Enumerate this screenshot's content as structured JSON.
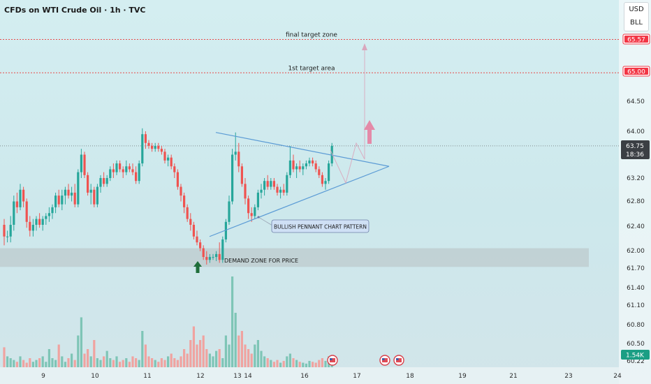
{
  "title": "CFDs on WTI Crude Oil · 1h · TVC",
  "units": [
    "USD",
    "BLL"
  ],
  "colors": {
    "up": "#26a69a",
    "down": "#ef5350",
    "up_vol": "#7ec5b6",
    "down_vol": "#f0a3a0",
    "trendline": "#5b9bd5",
    "target_line": "#e84a4a",
    "zone": "#b9c4c6",
    "target_badge": "#f23645",
    "arrow_up": "#e48aa8",
    "demand_arrow": "#1f6e3a",
    "volume_badge": "#1a9e84"
  },
  "chart_data": {
    "type": "candlestick",
    "y_axis": {
      "ticks": [
        "64.50",
        "64.00",
        "63.20",
        "62.80",
        "62.40",
        "62.00",
        "61.70",
        "61.40",
        "61.10",
        "60.80",
        "60.50",
        "60.22"
      ],
      "badges": [
        {
          "value": "65.57",
          "kind": "target"
        },
        {
          "value": "65.00",
          "kind": "target"
        },
        {
          "value": "63.75",
          "sub": "18:36",
          "kind": "current"
        },
        {
          "value": "1.54K",
          "kind": "volume"
        }
      ]
    },
    "x_axis": {
      "ticks": [
        "9",
        "10",
        "11",
        "12",
        "13",
        "14",
        "16",
        "17",
        "18",
        "19",
        "21",
        "23",
        "24"
      ]
    },
    "levels": [
      {
        "label": "final target zone",
        "value": 65.57
      },
      {
        "label": "1st target area",
        "value": 65.0
      }
    ],
    "current_price": 63.75,
    "annotations": [
      "BULLISH PENNANT CHART PATTERN",
      "DEMAND ZONE FOR PRICE"
    ],
    "demand_zone": [
      61.68,
      62.0
    ],
    "pennant": {
      "upper": [
        [
          62.05,
          63.98
        ],
        [
          64.4,
          63.4
        ]
      ],
      "lower": [
        [
          62.05,
          62.2
        ],
        [
          64.4,
          63.4
        ]
      ]
    },
    "candles": [
      [
        62.4,
        62.5,
        62.05,
        62.2
      ],
      [
        62.2,
        62.3,
        62.1,
        62.2
      ],
      [
        62.2,
        62.55,
        62.1,
        62.4
      ],
      [
        62.4,
        62.9,
        62.3,
        62.8
      ],
      [
        62.8,
        62.95,
        62.6,
        62.7
      ],
      [
        62.7,
        63.1,
        62.65,
        63.0
      ],
      [
        63.0,
        63.05,
        62.7,
        62.8
      ],
      [
        62.8,
        62.85,
        62.35,
        62.45
      ],
      [
        62.45,
        62.55,
        62.2,
        62.3
      ],
      [
        62.3,
        62.5,
        62.2,
        62.4
      ],
      [
        62.4,
        62.55,
        62.3,
        62.5
      ],
      [
        62.5,
        62.6,
        62.35,
        62.4
      ],
      [
        62.4,
        62.55,
        62.3,
        62.5
      ],
      [
        62.5,
        62.6,
        62.4,
        62.55
      ],
      [
        62.55,
        62.7,
        62.45,
        62.6
      ],
      [
        62.6,
        62.75,
        62.5,
        62.7
      ],
      [
        62.7,
        62.95,
        62.6,
        62.9
      ],
      [
        62.9,
        63.0,
        62.7,
        62.75
      ],
      [
        62.75,
        63.0,
        62.65,
        62.9
      ],
      [
        62.9,
        63.05,
        62.75,
        63.0
      ],
      [
        63.0,
        63.1,
        62.85,
        62.9
      ],
      [
        62.9,
        63.05,
        62.8,
        62.95
      ],
      [
        62.95,
        63.1,
        62.7,
        62.75
      ],
      [
        62.75,
        63.35,
        62.7,
        63.3
      ],
      [
        63.3,
        63.7,
        63.2,
        63.6
      ],
      [
        63.6,
        63.65,
        63.2,
        63.25
      ],
      [
        63.25,
        63.3,
        62.9,
        62.95
      ],
      [
        62.95,
        63.1,
        62.75,
        63.0
      ],
      [
        63.0,
        63.05,
        62.7,
        62.75
      ],
      [
        62.75,
        63.1,
        62.7,
        63.05
      ],
      [
        63.05,
        63.25,
        62.95,
        63.2
      ],
      [
        63.2,
        63.3,
        63.05,
        63.1
      ],
      [
        63.1,
        63.25,
        63.05,
        63.2
      ],
      [
        63.2,
        63.4,
        63.15,
        63.35
      ],
      [
        63.35,
        63.45,
        63.2,
        63.3
      ],
      [
        63.3,
        63.5,
        63.25,
        63.45
      ],
      [
        63.45,
        63.5,
        63.3,
        63.35
      ],
      [
        63.35,
        63.4,
        63.2,
        63.3
      ],
      [
        63.3,
        63.5,
        63.25,
        63.4
      ],
      [
        63.4,
        63.45,
        63.3,
        63.35
      ],
      [
        63.35,
        63.45,
        63.25,
        63.3
      ],
      [
        63.3,
        63.4,
        63.1,
        63.15
      ],
      [
        63.15,
        63.5,
        63.1,
        63.45
      ],
      [
        63.45,
        64.05,
        63.4,
        63.95
      ],
      [
        63.95,
        64.0,
        63.7,
        63.8
      ],
      [
        63.8,
        63.85,
        63.7,
        63.75
      ],
      [
        63.75,
        63.8,
        63.65,
        63.7
      ],
      [
        63.7,
        63.8,
        63.65,
        63.75
      ],
      [
        63.75,
        63.8,
        63.65,
        63.7
      ],
      [
        63.7,
        63.75,
        63.6,
        63.65
      ],
      [
        63.65,
        63.7,
        63.45,
        63.5
      ],
      [
        63.5,
        63.6,
        63.4,
        63.55
      ],
      [
        63.55,
        63.6,
        63.35,
        63.4
      ],
      [
        63.4,
        63.45,
        63.2,
        63.3
      ],
      [
        63.3,
        63.35,
        63.0,
        63.05
      ],
      [
        63.05,
        63.1,
        62.8,
        62.9
      ],
      [
        62.9,
        62.95,
        62.6,
        62.7
      ],
      [
        62.7,
        62.75,
        62.45,
        62.5
      ],
      [
        62.5,
        62.6,
        62.3,
        62.4
      ],
      [
        62.4,
        62.45,
        62.15,
        62.2
      ],
      [
        62.2,
        62.3,
        62.05,
        62.1
      ],
      [
        62.1,
        62.15,
        61.95,
        62.0
      ],
      [
        62.0,
        62.05,
        61.8,
        61.85
      ],
      [
        61.85,
        61.95,
        61.72,
        61.8
      ],
      [
        61.8,
        61.9,
        61.75,
        61.85
      ],
      [
        61.85,
        61.9,
        61.8,
        61.85
      ],
      [
        61.85,
        61.95,
        61.78,
        61.9
      ],
      [
        61.9,
        62.1,
        61.75,
        61.8
      ],
      [
        61.8,
        62.2,
        61.75,
        62.15
      ],
      [
        62.15,
        62.5,
        62.1,
        62.45
      ],
      [
        62.45,
        62.9,
        62.4,
        62.8
      ],
      [
        62.8,
        63.7,
        62.75,
        63.6
      ],
      [
        63.6,
        63.98,
        63.5,
        63.65
      ],
      [
        63.65,
        63.8,
        63.3,
        63.4
      ],
      [
        63.4,
        63.45,
        63.05,
        63.1
      ],
      [
        63.1,
        63.2,
        62.75,
        62.85
      ],
      [
        62.85,
        62.9,
        62.5,
        62.6
      ],
      [
        62.6,
        62.7,
        62.45,
        62.55
      ],
      [
        62.55,
        62.75,
        62.5,
        62.7
      ],
      [
        62.7,
        63.0,
        62.65,
        62.95
      ],
      [
        62.95,
        63.1,
        62.85,
        63.0
      ],
      [
        63.0,
        63.2,
        62.9,
        63.15
      ],
      [
        63.15,
        63.25,
        63.0,
        63.05
      ],
      [
        63.05,
        63.2,
        63.0,
        63.15
      ],
      [
        63.15,
        63.2,
        63.0,
        63.05
      ],
      [
        63.05,
        63.1,
        62.9,
        62.95
      ],
      [
        62.95,
        63.05,
        62.85,
        63.0
      ],
      [
        63.0,
        63.1,
        62.9,
        62.95
      ],
      [
        62.95,
        63.3,
        62.9,
        63.25
      ],
      [
        63.25,
        63.75,
        63.2,
        63.5
      ],
      [
        63.5,
        63.6,
        63.3,
        63.35
      ],
      [
        63.35,
        63.45,
        63.2,
        63.4
      ],
      [
        63.4,
        63.5,
        63.3,
        63.35
      ],
      [
        63.35,
        63.45,
        63.25,
        63.4
      ],
      [
        63.4,
        63.5,
        63.35,
        63.45
      ],
      [
        63.45,
        63.55,
        63.4,
        63.5
      ],
      [
        63.5,
        63.55,
        63.4,
        63.45
      ],
      [
        63.45,
        63.5,
        63.3,
        63.35
      ],
      [
        63.35,
        63.4,
        63.2,
        63.25
      ],
      [
        63.25,
        63.3,
        63.05,
        63.1
      ],
      [
        63.1,
        63.2,
        63.0,
        63.15
      ],
      [
        63.15,
        63.5,
        63.1,
        63.45
      ],
      [
        63.45,
        63.8,
        63.4,
        63.75
      ]
    ],
    "volumes": [
      0.22,
      0.12,
      0.1,
      0.08,
      0.06,
      0.12,
      0.08,
      0.05,
      0.1,
      0.06,
      0.08,
      0.1,
      0.12,
      0.06,
      0.2,
      0.1,
      0.08,
      0.25,
      0.12,
      0.06,
      0.1,
      0.15,
      0.08,
      0.35,
      0.55,
      0.15,
      0.2,
      0.12,
      0.3,
      0.1,
      0.08,
      0.12,
      0.18,
      0.1,
      0.08,
      0.12,
      0.06,
      0.08,
      0.1,
      0.06,
      0.12,
      0.1,
      0.08,
      0.4,
      0.25,
      0.12,
      0.1,
      0.08,
      0.06,
      0.1,
      0.08,
      0.12,
      0.15,
      0.1,
      0.08,
      0.12,
      0.2,
      0.15,
      0.3,
      0.45,
      0.25,
      0.3,
      0.35,
      0.2,
      0.15,
      0.12,
      0.18,
      0.2,
      0.1,
      0.35,
      0.25,
      1.0,
      0.6,
      0.35,
      0.4,
      0.25,
      0.2,
      0.15,
      0.25,
      0.3,
      0.18,
      0.12,
      0.1,
      0.08,
      0.06,
      0.08,
      0.05,
      0.07,
      0.12,
      0.15,
      0.1,
      0.08,
      0.06,
      0.05,
      0.04,
      0.07,
      0.06,
      0.05,
      0.08,
      0.1,
      0.07,
      0.12,
      0.1
    ]
  }
}
